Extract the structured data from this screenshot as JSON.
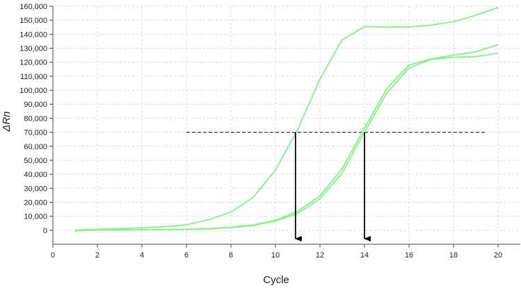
{
  "chart_data": {
    "type": "line",
    "xlabel": "Cycle",
    "ylabel": "ΔRn",
    "xlim": [
      0,
      21
    ],
    "ylim": [
      -10000,
      160000
    ],
    "grid": true,
    "x_ticks": [
      0,
      2,
      4,
      6,
      8,
      10,
      12,
      14,
      16,
      18,
      20
    ],
    "x_tick_labels": [
      "0",
      "2",
      "4",
      "6",
      "8",
      "10",
      "12",
      "14",
      "16",
      "18",
      "20"
    ],
    "y_ticks": [
      0,
      10000,
      20000,
      30000,
      40000,
      50000,
      60000,
      70000,
      80000,
      90000,
      100000,
      110000,
      120000,
      130000,
      140000,
      150000,
      160000
    ],
    "y_tick_labels": [
      "0",
      "10,000",
      "20,000",
      "30,000",
      "40,000",
      "50,000",
      "60,000",
      "70,000",
      "80,000",
      "90,000",
      "100,000",
      "110,000",
      "120,000",
      "130,000",
      "140,000",
      "150,000",
      "160,000"
    ],
    "series_color": "#90ee90",
    "series": [
      {
        "x": [
          1,
          2,
          3,
          4,
          5,
          6,
          7,
          8,
          9,
          10,
          11,
          12,
          13,
          14,
          15,
          16,
          17,
          18,
          19,
          20
        ],
        "values": [
          0,
          700,
          1200,
          1800,
          2500,
          4000,
          7500,
          13000,
          23500,
          43000,
          72000,
          108000,
          136000,
          145500,
          145000,
          145200,
          146500,
          149000,
          153500,
          159000
        ]
      },
      {
        "x": [
          1,
          2,
          3,
          4,
          5,
          6,
          7,
          8,
          9,
          10,
          11,
          12,
          13,
          14,
          15,
          16,
          17,
          18,
          19,
          20
        ],
        "values": [
          -500,
          200,
          300,
          400,
          500,
          700,
          1200,
          2200,
          3800,
          7200,
          13500,
          24500,
          44000,
          73000,
          101000,
          118000,
          122500,
          125000,
          127500,
          132500
        ]
      },
      {
        "x": [
          1,
          2,
          3,
          4,
          5,
          6,
          7,
          8,
          9,
          10,
          11,
          12,
          13,
          14,
          15,
          16,
          17,
          18,
          19,
          20
        ],
        "values": [
          -300,
          150,
          250,
          350,
          450,
          600,
          1000,
          1900,
          3400,
          6600,
          12000,
          22500,
          41000,
          70000,
          98000,
          116000,
          122000,
          123500,
          124000,
          126500
        ]
      }
    ],
    "threshold": {
      "value": 70000,
      "x_start": 6,
      "x_end": 19.5
    },
    "threshold_crossings": [
      10.9,
      14
    ]
  }
}
